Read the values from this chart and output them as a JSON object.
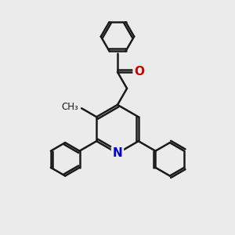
{
  "bg_color": "#ebebeb",
  "bond_color": "#1a1a1a",
  "N_color": "#0000cc",
  "O_color": "#cc0000",
  "bond_width": 1.8,
  "figsize": [
    3.0,
    3.0
  ],
  "dpi": 100,
  "xlim": [
    0,
    10
  ],
  "ylim": [
    0,
    10
  ]
}
